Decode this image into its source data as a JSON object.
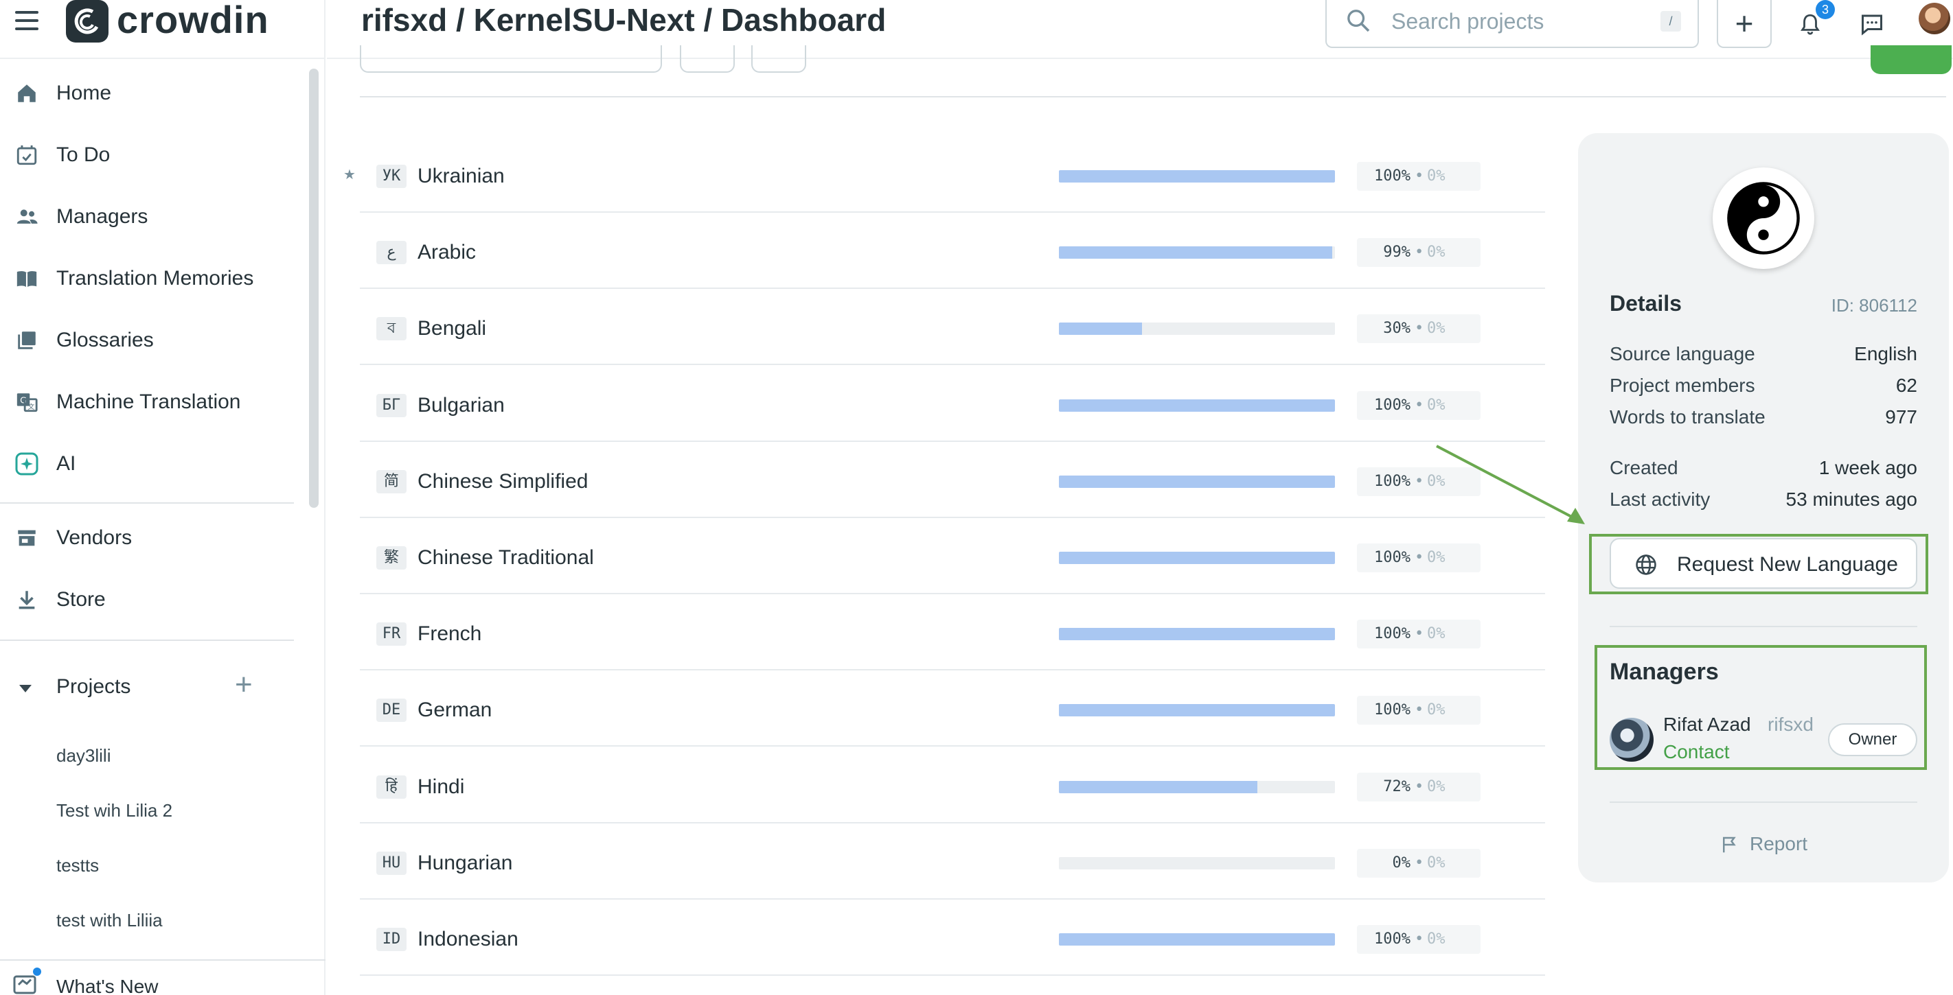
{
  "app": {
    "name": "crowdin"
  },
  "header": {
    "title": "rifsxd / KernelSU-Next / Dashboard",
    "search_placeholder": "Search projects",
    "search_shortcut": "/",
    "notifications_count": "3"
  },
  "sidebar": {
    "items": [
      {
        "label": "Home",
        "icon": "home-icon"
      },
      {
        "label": "To Do",
        "icon": "calendar-check-icon"
      },
      {
        "label": "Managers",
        "icon": "people-icon"
      },
      {
        "label": "Translation Memories",
        "icon": "book-icon"
      },
      {
        "label": "Glossaries",
        "icon": "library-icon"
      },
      {
        "label": "Machine Translation",
        "icon": "translate-icon"
      },
      {
        "label": "AI",
        "icon": "ai-sparkle-icon"
      },
      {
        "label": "Vendors",
        "icon": "store-icon"
      },
      {
        "label": "Store",
        "icon": "download-icon"
      }
    ],
    "projects_label": "Projects",
    "projects": [
      "day3lili",
      "Test wih Lilia 2",
      "testts",
      "test with Liliia"
    ],
    "whats_new": "What's New"
  },
  "languages": [
    {
      "code": "УК",
      "name": "Ukrainian",
      "translated": 100,
      "approved": 0,
      "starred": true
    },
    {
      "code": "ع",
      "name": "Arabic",
      "translated": 99,
      "approved": 0
    },
    {
      "code": "ব",
      "name": "Bengali",
      "translated": 30,
      "approved": 0
    },
    {
      "code": "БГ",
      "name": "Bulgarian",
      "translated": 100,
      "approved": 0
    },
    {
      "code": "简",
      "name": "Chinese Simplified",
      "translated": 100,
      "approved": 0
    },
    {
      "code": "繁",
      "name": "Chinese Traditional",
      "translated": 100,
      "approved": 0
    },
    {
      "code": "FR",
      "name": "French",
      "translated": 100,
      "approved": 0
    },
    {
      "code": "DE",
      "name": "German",
      "translated": 100,
      "approved": 0
    },
    {
      "code": "हिं",
      "name": "Hindi",
      "translated": 72,
      "approved": 0
    },
    {
      "code": "HU",
      "name": "Hungarian",
      "translated": 0,
      "approved": 0
    },
    {
      "code": "ID",
      "name": "Indonesian",
      "translated": 100,
      "approved": 0
    }
  ],
  "details": {
    "title": "Details",
    "id": "ID: 806112",
    "rows": [
      {
        "k": "Source language",
        "v": "English"
      },
      {
        "k": "Project members",
        "v": "62"
      },
      {
        "k": "Words to translate",
        "v": "977"
      },
      {
        "k": "Created",
        "v": "1 week ago"
      },
      {
        "k": "Last activity",
        "v": "53 minutes ago"
      }
    ],
    "request_button": "Request New Language",
    "managers_title": "Managers",
    "manager": {
      "name": "Rifat Azad",
      "username": "rifsxd",
      "contact": "Contact",
      "role": "Owner"
    },
    "report": "Report"
  },
  "colors": {
    "accent_green": "#4caf50",
    "highlight_green": "#6aa84f",
    "progress_blue": "#a9c7f2"
  }
}
